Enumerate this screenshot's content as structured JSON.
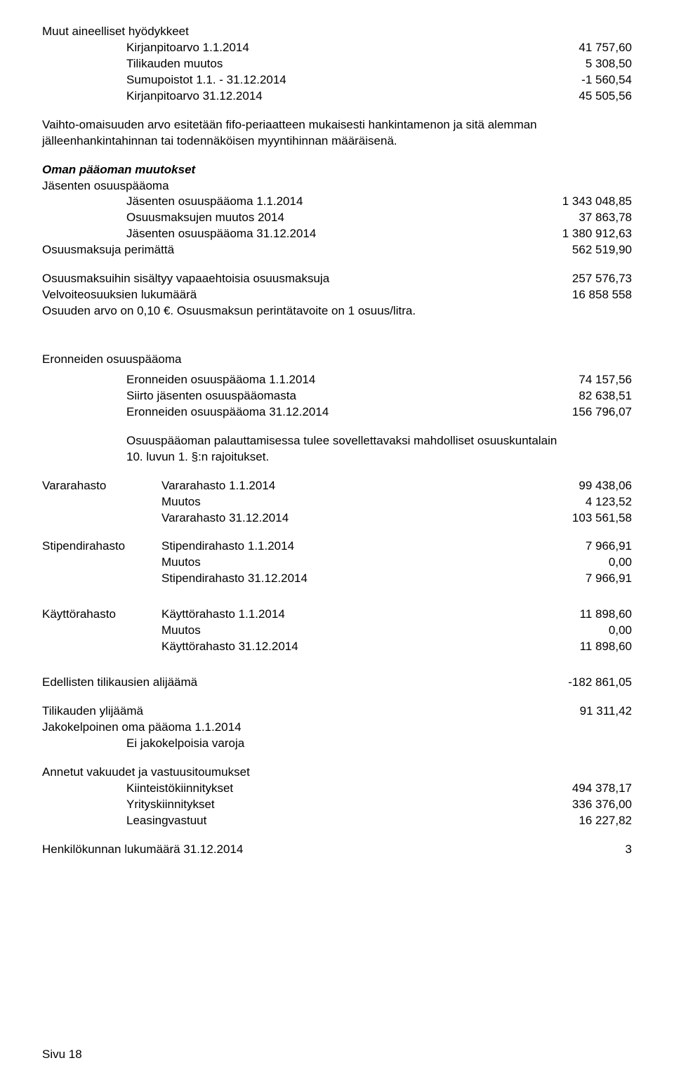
{
  "colors": {
    "text": "#000000",
    "background": "#ffffff"
  },
  "fonts": {
    "base_family": "Arial",
    "base_size_pt": 13
  },
  "section1": {
    "title": "Muut aineelliset hyödykkeet",
    "rows": [
      {
        "label": "Kirjanpitoarvo 1.1.2014",
        "value": "41 757,60"
      },
      {
        "label": "Tilikauden muutos",
        "value": "5 308,50"
      },
      {
        "label": "Sumupoistot 1.1. - 31.12.2014",
        "value": "-1 560,54"
      },
      {
        "label": "Kirjanpitoarvo 31.12.2014",
        "value": "45 505,56"
      }
    ],
    "note": "Vaihto-omaisuuden arvo esitetään fifo-periaatteen mukaisesti hankintamenon ja sitä alemman jälleenhankintahinnan tai todennäköisen myyntihinnan määräisenä."
  },
  "section2": {
    "heading": "Oman pääoman muutokset",
    "sub1_title": "Jäsenten osuuspääoma",
    "sub1_rows": [
      {
        "label": "Jäsenten osuuspääoma 1.1.2014",
        "value": "1 343 048,85"
      },
      {
        "label": "Osuusmaksujen muutos 2014",
        "value": "37 863,78"
      },
      {
        "label": "Jäsenten osuuspääoma 31.12.2014",
        "value": "1 380 912,63"
      }
    ],
    "row_perimatta": {
      "label": "Osuusmaksuja perimättä",
      "value": "562 519,90"
    },
    "row_vapaa": {
      "label": "Osuusmaksuihin sisältyy vapaaehtoisia osuusmaksuja",
      "value": "257 576,73"
    },
    "row_velvoite": {
      "label": "Velvoiteosuuksien lukumäärä",
      "value": "16 858 558"
    },
    "note": "Osuuden arvo on 0,10 €.  Osuusmaksun perintätavoite on 1 osuus/litra."
  },
  "section3": {
    "title": "Eronneiden osuuspääoma",
    "rows": [
      {
        "label": "Eronneiden osuuspääoma 1.1.2014",
        "value": "74 157,56"
      },
      {
        "label": "Siirto jäsenten osuuspääomasta",
        "value": "82 638,51"
      },
      {
        "label": "Eronneiden osuuspääoma 31.12.2014",
        "value": "156 796,07"
      }
    ],
    "note1": "Osuuspääoman palauttamisessa tulee sovellettavaksi mahdolliset osuuskuntalain",
    "note2": "10. luvun 1. §:n rajoitukset."
  },
  "funds": {
    "vararahasto": {
      "name": "Vararahasto",
      "rows": [
        {
          "label": "Vararahasto 1.1.2014",
          "value": "99 438,06"
        },
        {
          "label": "Muutos",
          "value": "4 123,52"
        },
        {
          "label": "Vararahasto 31.12.2014",
          "value": "103 561,58"
        }
      ]
    },
    "stipendirahasto": {
      "name": "Stipendirahasto",
      "rows": [
        {
          "label": "Stipendirahasto 1.1.2014",
          "value": "7 966,91"
        },
        {
          "label": "Muutos",
          "value": "0,00"
        },
        {
          "label": "Stipendirahasto 31.12.2014",
          "value": "7 966,91"
        }
      ]
    },
    "kayttorahasto": {
      "name": "Käyttörahasto",
      "rows": [
        {
          "label": "Käyttörahasto 1.1.2014",
          "value": "11 898,60"
        },
        {
          "label": "Muutos",
          "value": "0,00"
        },
        {
          "label": "Käyttörahasto 31.12.2014",
          "value": "11 898,60"
        }
      ]
    }
  },
  "bottom": {
    "row_edellisten": {
      "label": "Edellisten tilikausien alijäämä",
      "value": "-182 861,05"
    },
    "row_tilikauden": {
      "label": "Tilikauden ylijäämä",
      "value": "91 311,42"
    },
    "row_jako_label": "Jakokelpoinen oma pääoma 1.1.2014",
    "row_jako_note": "Ei jakokelpoisia varoja",
    "vakuudet_title": "Annetut vakuudet ja vastuusitoumukset",
    "vakuudet_rows": [
      {
        "label": "Kiinteistökiinnitykset",
        "value": "494 378,17"
      },
      {
        "label": "Yrityskiinnitykset",
        "value": "336 376,00"
      },
      {
        "label": "Leasingvastuut",
        "value": "16 227,82"
      }
    ],
    "henkilo": {
      "label": "Henkilökunnan lukumäärä  31.12.2014",
      "value": "3"
    }
  },
  "footer": "Sivu 18"
}
